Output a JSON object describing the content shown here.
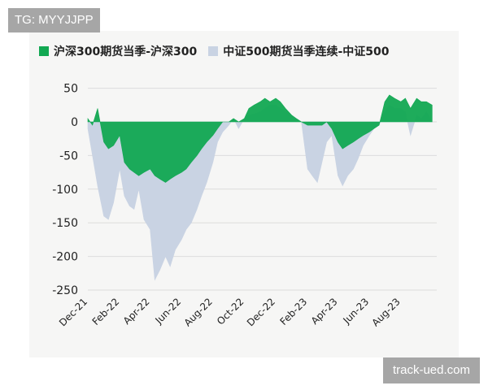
{
  "watermarks": {
    "top_left": "TG: MYYJJPP",
    "bottom_right": "track-ued.com"
  },
  "colors": {
    "series1": "#12a852",
    "series2": "#c9d3e3",
    "grid": "#dcdcdc",
    "panel": "#f6f6f5"
  },
  "chart_data": {
    "type": "area",
    "title": "",
    "xlabel": "",
    "ylabel": "",
    "ylim": [
      -250,
      60
    ],
    "y_ticks": [
      50,
      0,
      -50,
      -100,
      -150,
      -200,
      -250
    ],
    "x_range": [
      "2021-12-01",
      "2023-10-10"
    ],
    "x_tick_labels": [
      {
        "date": "2021-12-01",
        "label": "Dec-21"
      },
      {
        "date": "2022-02-01",
        "label": "Feb-22"
      },
      {
        "date": "2022-04-01",
        "label": "Apr-22"
      },
      {
        "date": "2022-06-01",
        "label": "Jun-22"
      },
      {
        "date": "2022-08-01",
        "label": "Aug-22"
      },
      {
        "date": "2022-10-01",
        "label": "Oct-22"
      },
      {
        "date": "2022-12-01",
        "label": "Dec-22"
      },
      {
        "date": "2023-02-01",
        "label": "Feb-23"
      },
      {
        "date": "2023-04-01",
        "label": "Apr-23"
      },
      {
        "date": "2023-06-01",
        "label": "Jun-23"
      },
      {
        "date": "2023-08-01",
        "label": "Aug-23"
      }
    ],
    "grid": "horizontal",
    "legend_position": "top",
    "series": [
      {
        "name": "中证500期货当季连续-中证500",
        "x": [
          "2021-12-01",
          "2021-12-10",
          "2021-12-20",
          "2022-01-01",
          "2022-01-10",
          "2022-01-20",
          "2022-02-01",
          "2022-02-10",
          "2022-02-20",
          "2022-03-01",
          "2022-03-10",
          "2022-03-20",
          "2022-04-01",
          "2022-04-10",
          "2022-04-20",
          "2022-05-01",
          "2022-05-10",
          "2022-05-20",
          "2022-06-01",
          "2022-06-10",
          "2022-06-20",
          "2022-07-01",
          "2022-07-10",
          "2022-07-20",
          "2022-08-01",
          "2022-08-10",
          "2022-08-20",
          "2022-09-01",
          "2022-09-10",
          "2022-09-20",
          "2022-10-01",
          "2022-10-10",
          "2022-10-20",
          "2022-11-01",
          "2022-11-10",
          "2022-11-20",
          "2022-12-01",
          "2022-12-10",
          "2022-12-20",
          "2023-01-01",
          "2023-01-10",
          "2023-01-20",
          "2023-02-01",
          "2023-02-10",
          "2023-02-20",
          "2023-03-01",
          "2023-03-10",
          "2023-03-20",
          "2023-04-01",
          "2023-04-10",
          "2023-04-20",
          "2023-05-01",
          "2023-05-10",
          "2023-05-20",
          "2023-06-01",
          "2023-06-10",
          "2023-06-20",
          "2023-07-01",
          "2023-07-10",
          "2023-07-20",
          "2023-08-01",
          "2023-08-10",
          "2023-08-20",
          "2023-09-01",
          "2023-09-10",
          "2023-09-20",
          "2023-10-01"
        ],
        "values": [
          -10,
          -50,
          -95,
          -140,
          -145,
          -120,
          -70,
          -110,
          -125,
          -130,
          -100,
          -145,
          -160,
          -235,
          -220,
          -200,
          -215,
          -190,
          -175,
          -160,
          -150,
          -130,
          -110,
          -90,
          -60,
          -30,
          -15,
          -5,
          5,
          -10,
          5,
          10,
          12,
          15,
          20,
          25,
          25,
          20,
          15,
          10,
          5,
          0,
          -70,
          -80,
          -90,
          -60,
          -30,
          -20,
          -80,
          -95,
          -80,
          -70,
          -55,
          -35,
          -20,
          -10,
          -5,
          15,
          25,
          20,
          20,
          15,
          -20,
          10,
          5,
          15,
          0
        ]
      },
      {
        "name": "沪深300期货当季-沪深300",
        "x": [
          "2021-12-01",
          "2021-12-10",
          "2021-12-20",
          "2022-01-01",
          "2022-01-10",
          "2022-01-20",
          "2022-02-01",
          "2022-02-10",
          "2022-02-20",
          "2022-03-01",
          "2022-03-10",
          "2022-03-20",
          "2022-04-01",
          "2022-04-10",
          "2022-04-20",
          "2022-05-01",
          "2022-05-10",
          "2022-05-20",
          "2022-06-01",
          "2022-06-10",
          "2022-06-20",
          "2022-07-01",
          "2022-07-10",
          "2022-07-20",
          "2022-08-01",
          "2022-08-10",
          "2022-08-20",
          "2022-09-01",
          "2022-09-10",
          "2022-09-20",
          "2022-10-01",
          "2022-10-10",
          "2022-10-20",
          "2022-11-01",
          "2022-11-10",
          "2022-11-20",
          "2022-12-01",
          "2022-12-10",
          "2022-12-20",
          "2023-01-01",
          "2023-01-10",
          "2023-01-20",
          "2023-02-01",
          "2023-02-10",
          "2023-02-20",
          "2023-03-01",
          "2023-03-10",
          "2023-03-20",
          "2023-04-01",
          "2023-04-10",
          "2023-04-20",
          "2023-05-01",
          "2023-05-10",
          "2023-05-20",
          "2023-06-01",
          "2023-06-10",
          "2023-06-20",
          "2023-07-01",
          "2023-07-10",
          "2023-07-20",
          "2023-08-01",
          "2023-08-10",
          "2023-08-20",
          "2023-09-01",
          "2023-09-10",
          "2023-09-20",
          "2023-10-01"
        ],
        "values": [
          5,
          -5,
          20,
          -30,
          -40,
          -35,
          -20,
          -60,
          -70,
          -75,
          -80,
          -75,
          -70,
          -80,
          -85,
          -90,
          -85,
          -80,
          -75,
          -70,
          -60,
          -50,
          -40,
          -30,
          -20,
          -10,
          0,
          0,
          5,
          0,
          5,
          20,
          25,
          30,
          35,
          30,
          35,
          30,
          20,
          10,
          5,
          0,
          -5,
          -5,
          -5,
          -5,
          0,
          -10,
          -30,
          -40,
          -35,
          -30,
          -25,
          -20,
          -15,
          -10,
          -5,
          30,
          40,
          35,
          30,
          35,
          20,
          35,
          30,
          30,
          25
        ]
      }
    ]
  }
}
